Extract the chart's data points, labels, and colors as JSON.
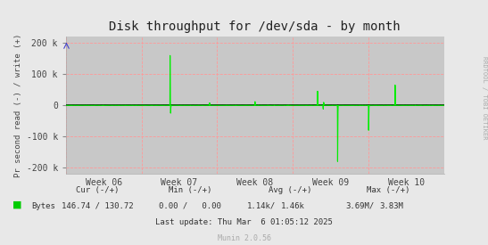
{
  "title": "Disk throughput for /dev/sda - by month",
  "ylabel": "Pr second read (-) / write (+)",
  "bg_color": "#e8e8e8",
  "plot_bg_color": "#c8c8c8",
  "grid_h_color": "#ff9999",
  "grid_v_color": "#ff9999",
  "line_color": "#00ee00",
  "zero_line_color": "#000000",
  "ylim": [
    -220000,
    220000
  ],
  "yticks": [
    -200000,
    -100000,
    0,
    100000,
    200000
  ],
  "ytick_labels": [
    "-200 k",
    "-100 k",
    "0",
    "100 k",
    "200 k"
  ],
  "week_labels": [
    "Week 06",
    "Week 07",
    "Week 08",
    "Week 09",
    "Week 10"
  ],
  "rrdtool_label": "RRDTOOL / TOBI OETIKER",
  "footer_legend_color": "#00cc00",
  "munin_text": "Munin 2.0.56",
  "footer_cur_label": "Cur (-/+)",
  "footer_min_label": "Min (-/+)",
  "footer_avg_label": "Avg (-/+)",
  "footer_max_label": "Max (-/+)",
  "footer_bytes_label": "Bytes",
  "footer_cur": "146.74 / 130.72",
  "footer_min": "0.00 /   0.00",
  "footer_avg_r": "1.14k/",
  "footer_avg_w": "1.46k",
  "footer_max_r": "3.69M/",
  "footer_max_w": "3.83M",
  "footer_lastupdate": "Last update: Thu Mar  6 01:05:12 2025",
  "n_points": 2000
}
